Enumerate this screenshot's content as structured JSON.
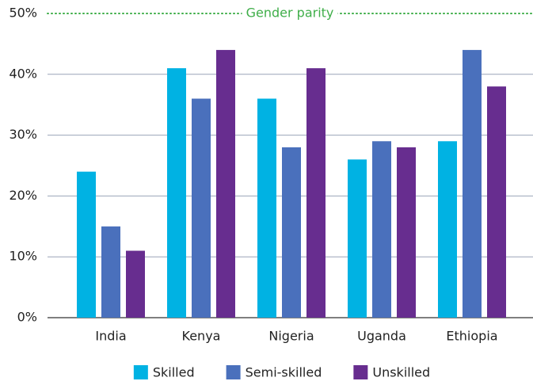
{
  "chart_data": {
    "type": "bar",
    "categories": [
      "India",
      "Kenya",
      "Nigeria",
      "Uganda",
      "Ethiopia"
    ],
    "series": [
      {
        "name": "Skilled",
        "color": "#00b2e3",
        "values": [
          24,
          41,
          36,
          26,
          29
        ]
      },
      {
        "name": "Semi-skilled",
        "color": "#4a70bc",
        "values": [
          15,
          36,
          28,
          29,
          44
        ]
      },
      {
        "name": "Unskilled",
        "color": "#672d8f",
        "values": [
          11,
          44,
          41,
          28,
          38
        ]
      }
    ],
    "ylim": [
      0,
      50
    ],
    "yticks": [
      {
        "value": 0,
        "label": "0%"
      },
      {
        "value": 10,
        "label": "10%"
      },
      {
        "value": 20,
        "label": "20%"
      },
      {
        "value": 30,
        "label": "30%"
      },
      {
        "value": 40,
        "label": "40%"
      },
      {
        "value": 50,
        "label": "50%"
      }
    ],
    "grid": true,
    "reference_line": {
      "value": 50,
      "label": "Gender parity",
      "color": "#3fae49"
    },
    "legend": "bottom"
  }
}
